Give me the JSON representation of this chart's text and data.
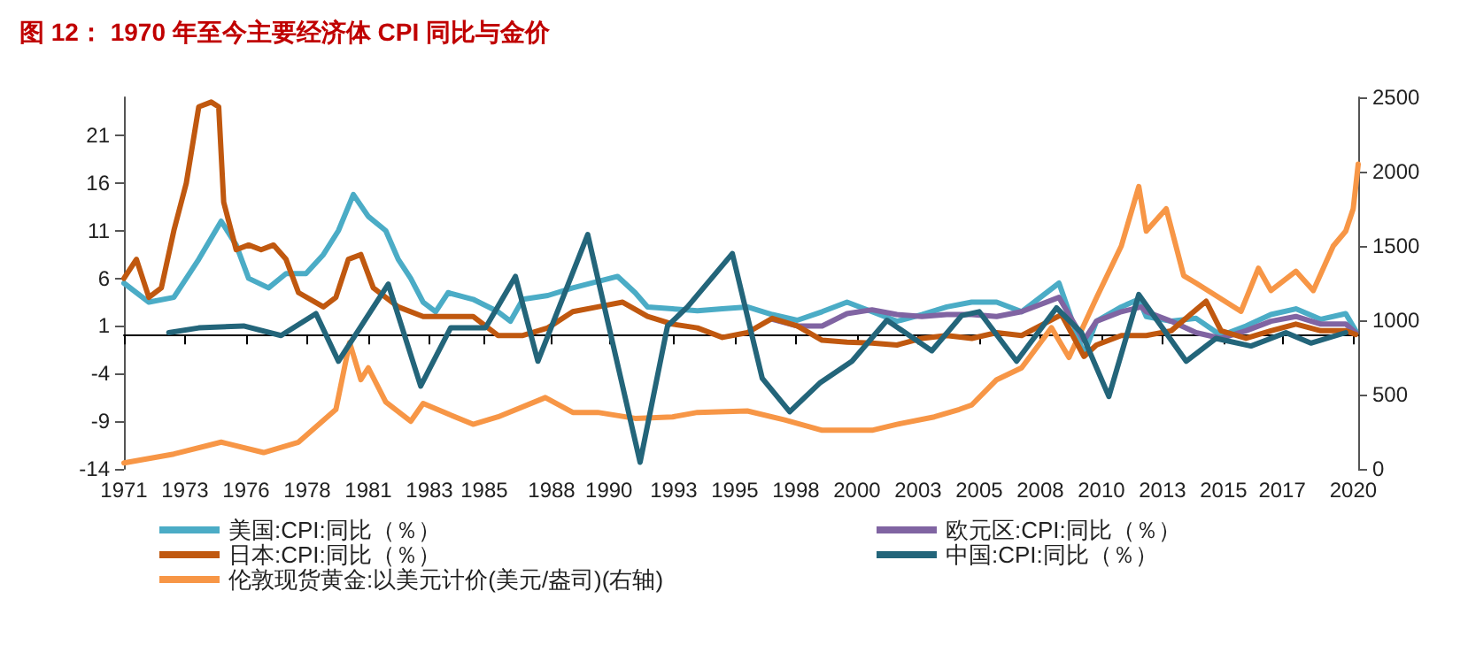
{
  "chart_data": {
    "type": "line",
    "title": "图 12： 1970 年至今主要经济体 CPI 同比与金价",
    "xlim": [
      1971,
      2020.5
    ],
    "xticks": [
      {
        "value": 1971,
        "label": "1971"
      },
      {
        "value": 1973.45,
        "label": "1973"
      },
      {
        "value": 1975.9,
        "label": "1976"
      },
      {
        "value": 1978.35,
        "label": "1978"
      },
      {
        "value": 1980.8,
        "label": "1981"
      },
      {
        "value": 1983.25,
        "label": "1983"
      },
      {
        "value": 1985.45,
        "label": "1985"
      },
      {
        "value": 1988.15,
        "label": "1988"
      },
      {
        "value": 1990.45,
        "label": "1990"
      },
      {
        "value": 1993.05,
        "label": "1993"
      },
      {
        "value": 1995.5,
        "label": "1995"
      },
      {
        "value": 1997.95,
        "label": "1998"
      },
      {
        "value": 2000.4,
        "label": "2000"
      },
      {
        "value": 2002.85,
        "label": "2003"
      },
      {
        "value": 2005.3,
        "label": "2005"
      },
      {
        "value": 2007.75,
        "label": "2008"
      },
      {
        "value": 2010.2,
        "label": "2010"
      },
      {
        "value": 2012.65,
        "label": "2013"
      },
      {
        "value": 2015.1,
        "label": "2015"
      },
      {
        "value": 2017.45,
        "label": "2017"
      },
      {
        "value": 2020.3,
        "label": "2020"
      }
    ],
    "ylim": [
      -14,
      25
    ],
    "yticks": [
      -14,
      -9,
      -4,
      1,
      6,
      11,
      16,
      21
    ],
    "y2lim": [
      0,
      2500
    ],
    "y2ticks": [
      0,
      500,
      1000,
      1500,
      2000,
      2500
    ],
    "grid": false,
    "legend": "bottom",
    "line_style": "solid",
    "marker": "none",
    "series": [
      {
        "name": "美国:CPI:同比（％）",
        "color": "#4bacc6",
        "x": [
          1971,
          1972,
          1973,
          1974,
          1974.9,
          1975.5,
          1976,
          1976.8,
          1977.5,
          1978.3,
          1979,
          1979.6,
          1980.2,
          1980.8,
          1981.5,
          1982,
          1982.5,
          1983,
          1983.5,
          1984,
          1985,
          1986,
          1986.5,
          1987,
          1988,
          1989,
          1990.8,
          1991.5,
          1992,
          1993,
          1994,
          1995,
          1996,
          1997,
          1998,
          1999,
          2000,
          2001,
          2002,
          2003,
          2004,
          2005,
          2006,
          2007,
          2008.5,
          2009.5,
          2010,
          2011,
          2011.7,
          2012,
          2013,
          2014,
          2015,
          2016,
          2017,
          2018,
          2019,
          2020,
          2020.4
        ],
        "values": [
          5.5,
          3.5,
          4,
          8,
          12,
          9.5,
          6,
          5,
          6.5,
          6.5,
          8.5,
          11,
          14.8,
          12.5,
          11,
          8,
          6,
          3.5,
          2.5,
          4.5,
          3.8,
          2.5,
          1.5,
          3.8,
          4.2,
          5,
          6.2,
          4.5,
          3,
          2.8,
          2.6,
          2.8,
          3,
          2.2,
          1.6,
          2.5,
          3.5,
          2.5,
          1.5,
          2.2,
          3,
          3.5,
          3.5,
          2.5,
          5.5,
          -2,
          1.5,
          3,
          3.8,
          2,
          1.5,
          1.8,
          0,
          1,
          2.2,
          2.8,
          1.7,
          2.3,
          0.5
        ]
      },
      {
        "name": "欧元区:CPI:同比（％）",
        "color": "#8064a2",
        "x": [
          1997,
          1998,
          1999,
          2000,
          2001,
          2002,
          2003,
          2004,
          2005,
          2006,
          2007,
          2008.5,
          2009.5,
          2010,
          2011,
          2011.8,
          2012,
          2013,
          2014,
          2015,
          2016,
          2017,
          2018,
          2019,
          2020,
          2020.4
        ],
        "values": [
          1.7,
          1,
          1,
          2.3,
          2.7,
          2.2,
          2,
          2.2,
          2.2,
          2,
          2.5,
          4,
          -0.5,
          1.5,
          2.5,
          3,
          2.5,
          1.5,
          0.3,
          -0.3,
          0.5,
          1.5,
          2,
          1.2,
          1.2,
          0.3
        ]
      },
      {
        "name": "日本:CPI:同比（％）",
        "color": "#c0580f",
        "x": [
          1971,
          1971.5,
          1972,
          1972.5,
          1973,
          1973.5,
          1974,
          1974.5,
          1974.8,
          1975,
          1975.5,
          1976,
          1976.5,
          1977,
          1977.5,
          1978,
          1979,
          1979.5,
          1980,
          1980.5,
          1981,
          1982,
          1983,
          1984,
          1985,
          1986,
          1987,
          1988,
          1989,
          1990,
          1991,
          1992,
          1993,
          1994,
          1995,
          1996,
          1997,
          1998,
          1999,
          2000,
          2001,
          2002,
          2003,
          2004,
          2005,
          2006,
          2007,
          2008.6,
          2009.5,
          2010,
          2011,
          2012,
          2013,
          2014.4,
          2015,
          2016,
          2017,
          2018,
          2019,
          2020,
          2020.4
        ],
        "values": [
          6,
          8,
          4,
          5,
          11,
          16,
          24,
          24.5,
          24,
          14,
          9,
          9.5,
          9,
          9.5,
          8,
          4.5,
          3,
          4,
          8,
          8.5,
          5,
          3,
          2,
          2,
          2,
          0,
          0,
          0.8,
          2.5,
          3,
          3.5,
          2,
          1.2,
          0.8,
          -0.2,
          0.3,
          1.8,
          1,
          -0.5,
          -0.7,
          -0.8,
          -1,
          -0.3,
          0,
          -0.3,
          0.3,
          0,
          2.2,
          -2.2,
          -1,
          0,
          0,
          0.5,
          3.6,
          0.5,
          -0.3,
          0.5,
          1.2,
          0.5,
          0.5,
          0.1
        ]
      },
      {
        "name": "中国:CPI:同比（％）",
        "color": "#23657a",
        "x": [
          1972.8,
          1974,
          1975.8,
          1977.3,
          1978.7,
          1979.6,
          1981.6,
          1982.9,
          1984.1,
          1985.5,
          1986.7,
          1987.6,
          1989.6,
          1991.7,
          1992.8,
          1993.6,
          1995.4,
          1996.6,
          1997.7,
          1998.9,
          2000.2,
          2001.6,
          2003.4,
          2004.6,
          2005.3,
          2006.8,
          2008.4,
          2009.4,
          2010.5,
          2011.7,
          2013.6,
          2014.8,
          2016.2,
          2017.6,
          2018.6,
          2020
        ],
        "values": [
          0.3,
          0.8,
          1,
          0,
          2.3,
          -2.7,
          5.4,
          -5.3,
          0.8,
          0.8,
          6.2,
          -2.7,
          10.6,
          -13.3,
          1,
          3,
          8.6,
          -4.5,
          -8,
          -5,
          -2.7,
          1.6,
          -1.6,
          2.1,
          2.5,
          -2.7,
          2.9,
          0.3,
          -6.4,
          4.3,
          -2.7,
          -0.3,
          -1.1,
          0.3,
          -0.8,
          0.3
        ]
      },
      {
        "name": "伦敦现货黄金:以美元计价(美元/盎司)(右轴)",
        "color": "#f79646",
        "axis": "y2",
        "x": [
          1971,
          1973,
          1974.9,
          1976.6,
          1978,
          1979.5,
          1980.05,
          1980.5,
          1980.8,
          1981.5,
          1982.5,
          1983,
          1985,
          1986,
          1987.9,
          1989,
          1990,
          1991.5,
          1993,
          1994,
          1996,
          1997.5,
          1999,
          2001,
          2002,
          2003.5,
          2004.5,
          2005,
          2006,
          2007,
          2008.2,
          2008.9,
          2010,
          2011,
          2011.7,
          2012,
          2012.8,
          2013.5,
          2014,
          2015.8,
          2016.5,
          2017,
          2018,
          2018.7,
          2019.5,
          2020,
          2020.3,
          2020.5
        ],
        "values": [
          40,
          100,
          180,
          110,
          180,
          400,
          850,
          600,
          680,
          450,
          320,
          440,
          300,
          350,
          480,
          380,
          380,
          340,
          350,
          380,
          390,
          330,
          260,
          260,
          300,
          350,
          400,
          430,
          600,
          680,
          950,
          750,
          1150,
          1500,
          1900,
          1600,
          1750,
          1300,
          1250,
          1060,
          1350,
          1200,
          1330,
          1200,
          1500,
          1600,
          1750,
          2050
        ]
      }
    ]
  }
}
